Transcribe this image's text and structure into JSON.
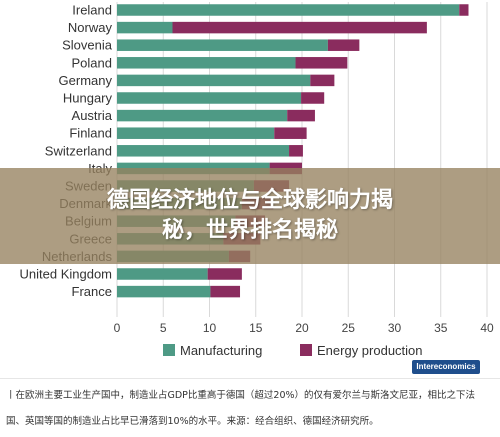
{
  "chart_data": {
    "type": "bar",
    "orientation": "horizontal",
    "stacked": true,
    "categories": [
      "Ireland",
      "Norway",
      "Slovenia",
      "Poland",
      "Germany",
      "Hungary",
      "Austria",
      "Finland",
      "Switzerland",
      "Italy",
      "Sweden",
      "Denmark",
      "Belgium",
      "Greece",
      "Netherlands",
      "United Kingdom",
      "France"
    ],
    "series": [
      {
        "name": "Manufacturing",
        "color": "#4e9a85",
        "values": [
          37,
          6,
          22.8,
          19.3,
          20.9,
          19.9,
          18.4,
          17,
          18.6,
          16.5,
          14.8,
          13.5,
          12.8,
          11.5,
          12.1,
          9.8,
          10.1
        ]
      },
      {
        "name": "Energy production",
        "color": "#8a2c5e",
        "values": [
          1,
          27.5,
          3.4,
          5.6,
          2.6,
          2.5,
          3,
          3.5,
          1.5,
          3.5,
          3.8,
          3.4,
          3.2,
          4,
          2.3,
          3.7,
          3.2
        ]
      }
    ],
    "xlim": [
      0,
      40
    ],
    "xticks": [
      "0",
      "5",
      "10",
      "15",
      "20",
      "25",
      "30",
      "35",
      "40"
    ],
    "grid": "vertical",
    "legend": "bottom"
  },
  "overlay": {
    "title_line1": "德国经济地位与全球影响力揭",
    "title_line2": "秘，世界排名揭秘"
  },
  "source_badge": "Intereconomics",
  "caption": {
    "line1": "丨在欧洲主要工业生产国中，制造业占GDP比重高于德国（超过20%）的仅有爱尔兰与斯洛文尼亚，相比之下法",
    "line2": "国、英国等国的制造业占比早已滑落到10%的水平。来源：经合组织、德国经济研究所。"
  }
}
